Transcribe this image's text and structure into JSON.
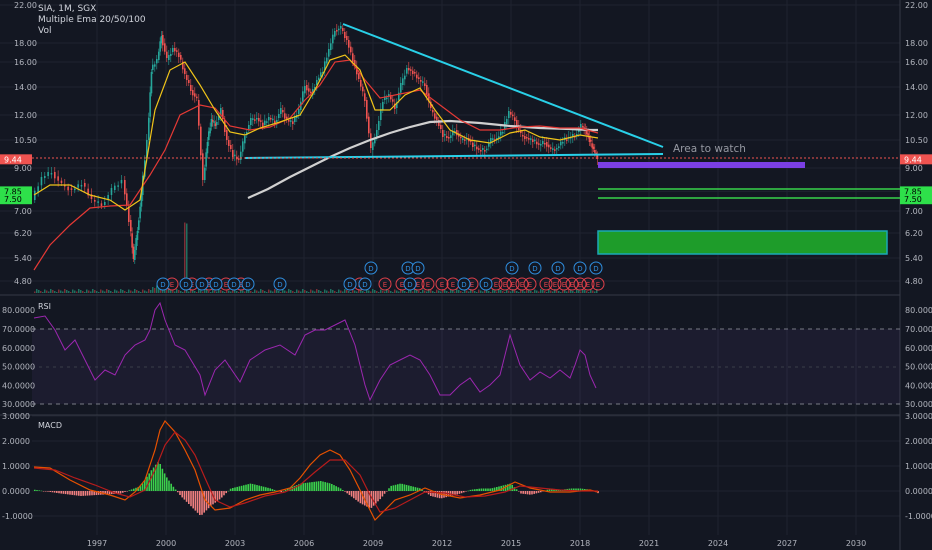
{
  "header": {
    "symbol": "SIA, 1M, SGX",
    "indicator": "Multiple Ema 20/50/100",
    "volume": "Vol"
  },
  "annotation": {
    "area_to_watch": "Area to watch"
  },
  "price_axis": {
    "ticks": [
      "22.00",
      "18.00",
      "16.00",
      "14.00",
      "12.00",
      "10.50",
      "9.00",
      "7.85",
      "7.00",
      "6.20",
      "5.40",
      "4.80"
    ],
    "tick_values": [
      22.0,
      18.0,
      16.0,
      14.0,
      12.0,
      10.5,
      9.0,
      7.85,
      7.0,
      6.2,
      5.4,
      4.8
    ],
    "current_price": "9.44",
    "current_value": 9.44,
    "support_labels": [
      "7.85",
      "7.50"
    ],
    "support_values": [
      7.85,
      7.5
    ]
  },
  "time_axis": {
    "labels": [
      "1997",
      "2000",
      "2003",
      "2006",
      "2009",
      "2012",
      "2015",
      "2018",
      "2021",
      "2024",
      "2027",
      "2030"
    ],
    "years": [
      1997,
      2000,
      2003,
      2006,
      2009,
      2012,
      2015,
      2018,
      2021,
      2024,
      2027,
      2030
    ]
  },
  "rsi": {
    "title": "RSI",
    "ticks": [
      "80.0000",
      "70.0000",
      "60.0000",
      "50.0000",
      "40.0000",
      "30.0000"
    ],
    "tick_values": [
      80,
      70,
      60,
      50,
      40,
      30
    ]
  },
  "macd": {
    "title": "MACD",
    "ticks": [
      "3.0000",
      "2.0000",
      "1.0000",
      "0.0000",
      "-1.0000"
    ],
    "tick_values": [
      3,
      2,
      1,
      0,
      -1
    ]
  },
  "events": {
    "dividend_letter": "D",
    "earnings_letter": "E"
  },
  "colors": {
    "background": "#131722",
    "up": "#26a69a",
    "down": "#ef5350",
    "trendline": "#00bcd4",
    "support_zone": "#1e9c2a",
    "purple_zone": "#7b3fe4",
    "ema20": "#f0c419",
    "ema50": "#e53935",
    "ema100": "#d0d0d0",
    "rsi_line": "#9c27b0",
    "macd_line": "#e65100",
    "signal_line": "#b71c1c"
  }
}
